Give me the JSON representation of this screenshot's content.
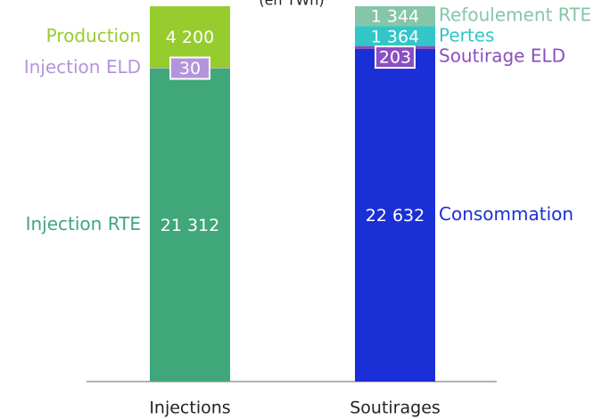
{
  "chart_data": {
    "type": "stacked_bar",
    "subtitle": "(en TWh)",
    "categories": [
      "Injections",
      "Soutirages"
    ],
    "series": [
      {
        "name": "Injection RTE",
        "color": "#3fa77a",
        "values": [
          21312,
          null
        ],
        "value_labels": [
          "21 312",
          null
        ]
      },
      {
        "name": "Injection ELD",
        "color": "#b494dc",
        "values": [
          30,
          null
        ],
        "value_labels": [
          "30",
          null
        ]
      },
      {
        "name": "Production",
        "color": "#97cc2e",
        "values": [
          4200,
          null
        ],
        "value_labels": [
          "4 200",
          null
        ]
      },
      {
        "name": "Consommation",
        "color": "#1a2fd6",
        "values": [
          null,
          22632
        ],
        "value_labels": [
          null,
          "22 632"
        ]
      },
      {
        "name": "Soutirage ELD",
        "color": "#8a4fc0",
        "values": [
          null,
          203
        ],
        "value_labels": [
          null,
          "203"
        ]
      },
      {
        "name": "Pertes",
        "color": "#33c6c6",
        "values": [
          null,
          1364
        ],
        "value_labels": [
          null,
          "1 364"
        ]
      },
      {
        "name": "Refoulement RTE",
        "color": "#86c6a8",
        "values": [
          null,
          1344
        ],
        "value_labels": [
          null,
          "1 344"
        ]
      }
    ]
  }
}
